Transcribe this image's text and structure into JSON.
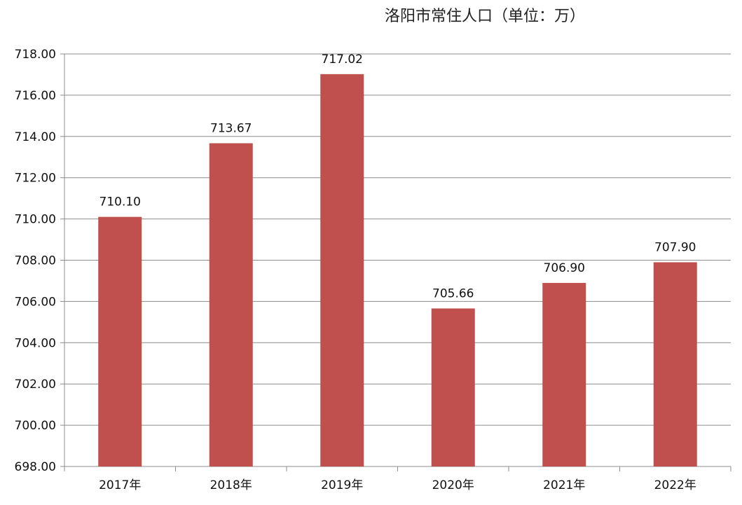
{
  "chart_data": {
    "type": "bar",
    "title": "洛阳市常住人口（单位：万）",
    "categories": [
      "2017年",
      "2018年",
      "2019年",
      "2020年",
      "2021年",
      "2022年"
    ],
    "values": [
      710.1,
      713.67,
      717.02,
      705.66,
      706.9,
      707.9
    ],
    "value_labels": [
      "710.10",
      "713.67",
      "717.02",
      "705.66",
      "706.90",
      "707.90"
    ],
    "ylim": [
      698,
      718
    ],
    "yticks": [
      "698.00",
      "700.00",
      "702.00",
      "704.00",
      "706.00",
      "708.00",
      "710.00",
      "712.00",
      "714.00",
      "716.00",
      "718.00"
    ],
    "grid": true,
    "legend": "none",
    "xlabel": "",
    "ylabel": "",
    "colors": {
      "bar": "#c0504d",
      "grid": "#8c8c8c"
    }
  }
}
